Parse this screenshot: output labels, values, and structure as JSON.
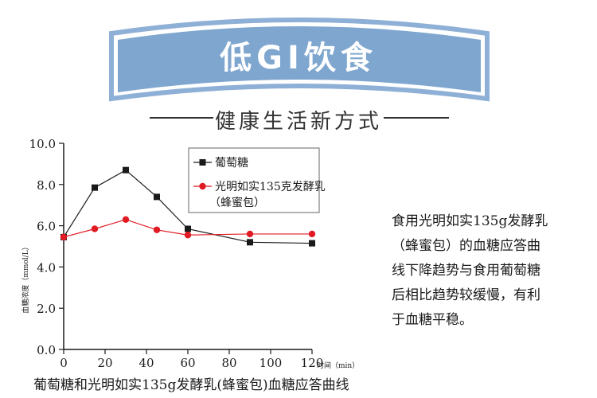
{
  "banner": {
    "title": "低GI饮食",
    "color": "#7fa6cf"
  },
  "subtitle": "健康生活新方式",
  "description": {
    "lines": [
      "食用光明如实135g发酵乳",
      "（蜂蜜包）的血糖应答曲",
      "线下降趋势与食用葡萄糖",
      "后相比趋势较缓慢，有利",
      "于血糖平稳。"
    ]
  },
  "chart_data": {
    "type": "line",
    "title": "葡萄糖和光明如实135g发酵乳(蜂蜜包)血糖应答曲线",
    "xlabel": "时间（min）",
    "ylabel": "血糖浓度（mmol/L）",
    "xlim": [
      0,
      120
    ],
    "ylim": [
      0,
      10
    ],
    "x_ticks": [
      0,
      20,
      40,
      60,
      80,
      100,
      120
    ],
    "y_ticks": [
      "0.0",
      "2.0",
      "4.0",
      "6.0",
      "8.0",
      "10.0"
    ],
    "grid": false,
    "legend_position": "top-center",
    "series": [
      {
        "name": "葡萄糖",
        "marker": "square",
        "color": "#1a1a1a",
        "x": [
          0,
          15,
          30,
          45,
          60,
          90,
          120
        ],
        "y": [
          5.45,
          7.85,
          8.7,
          7.4,
          5.85,
          5.2,
          5.15
        ]
      },
      {
        "name": "光明如实135克发酵乳（蜂蜜包）",
        "marker": "circle",
        "color": "#e01b24",
        "x": [
          0,
          15,
          30,
          45,
          60,
          90,
          120
        ],
        "y": [
          5.45,
          5.85,
          6.3,
          5.8,
          5.55,
          5.6,
          5.6
        ]
      }
    ]
  }
}
